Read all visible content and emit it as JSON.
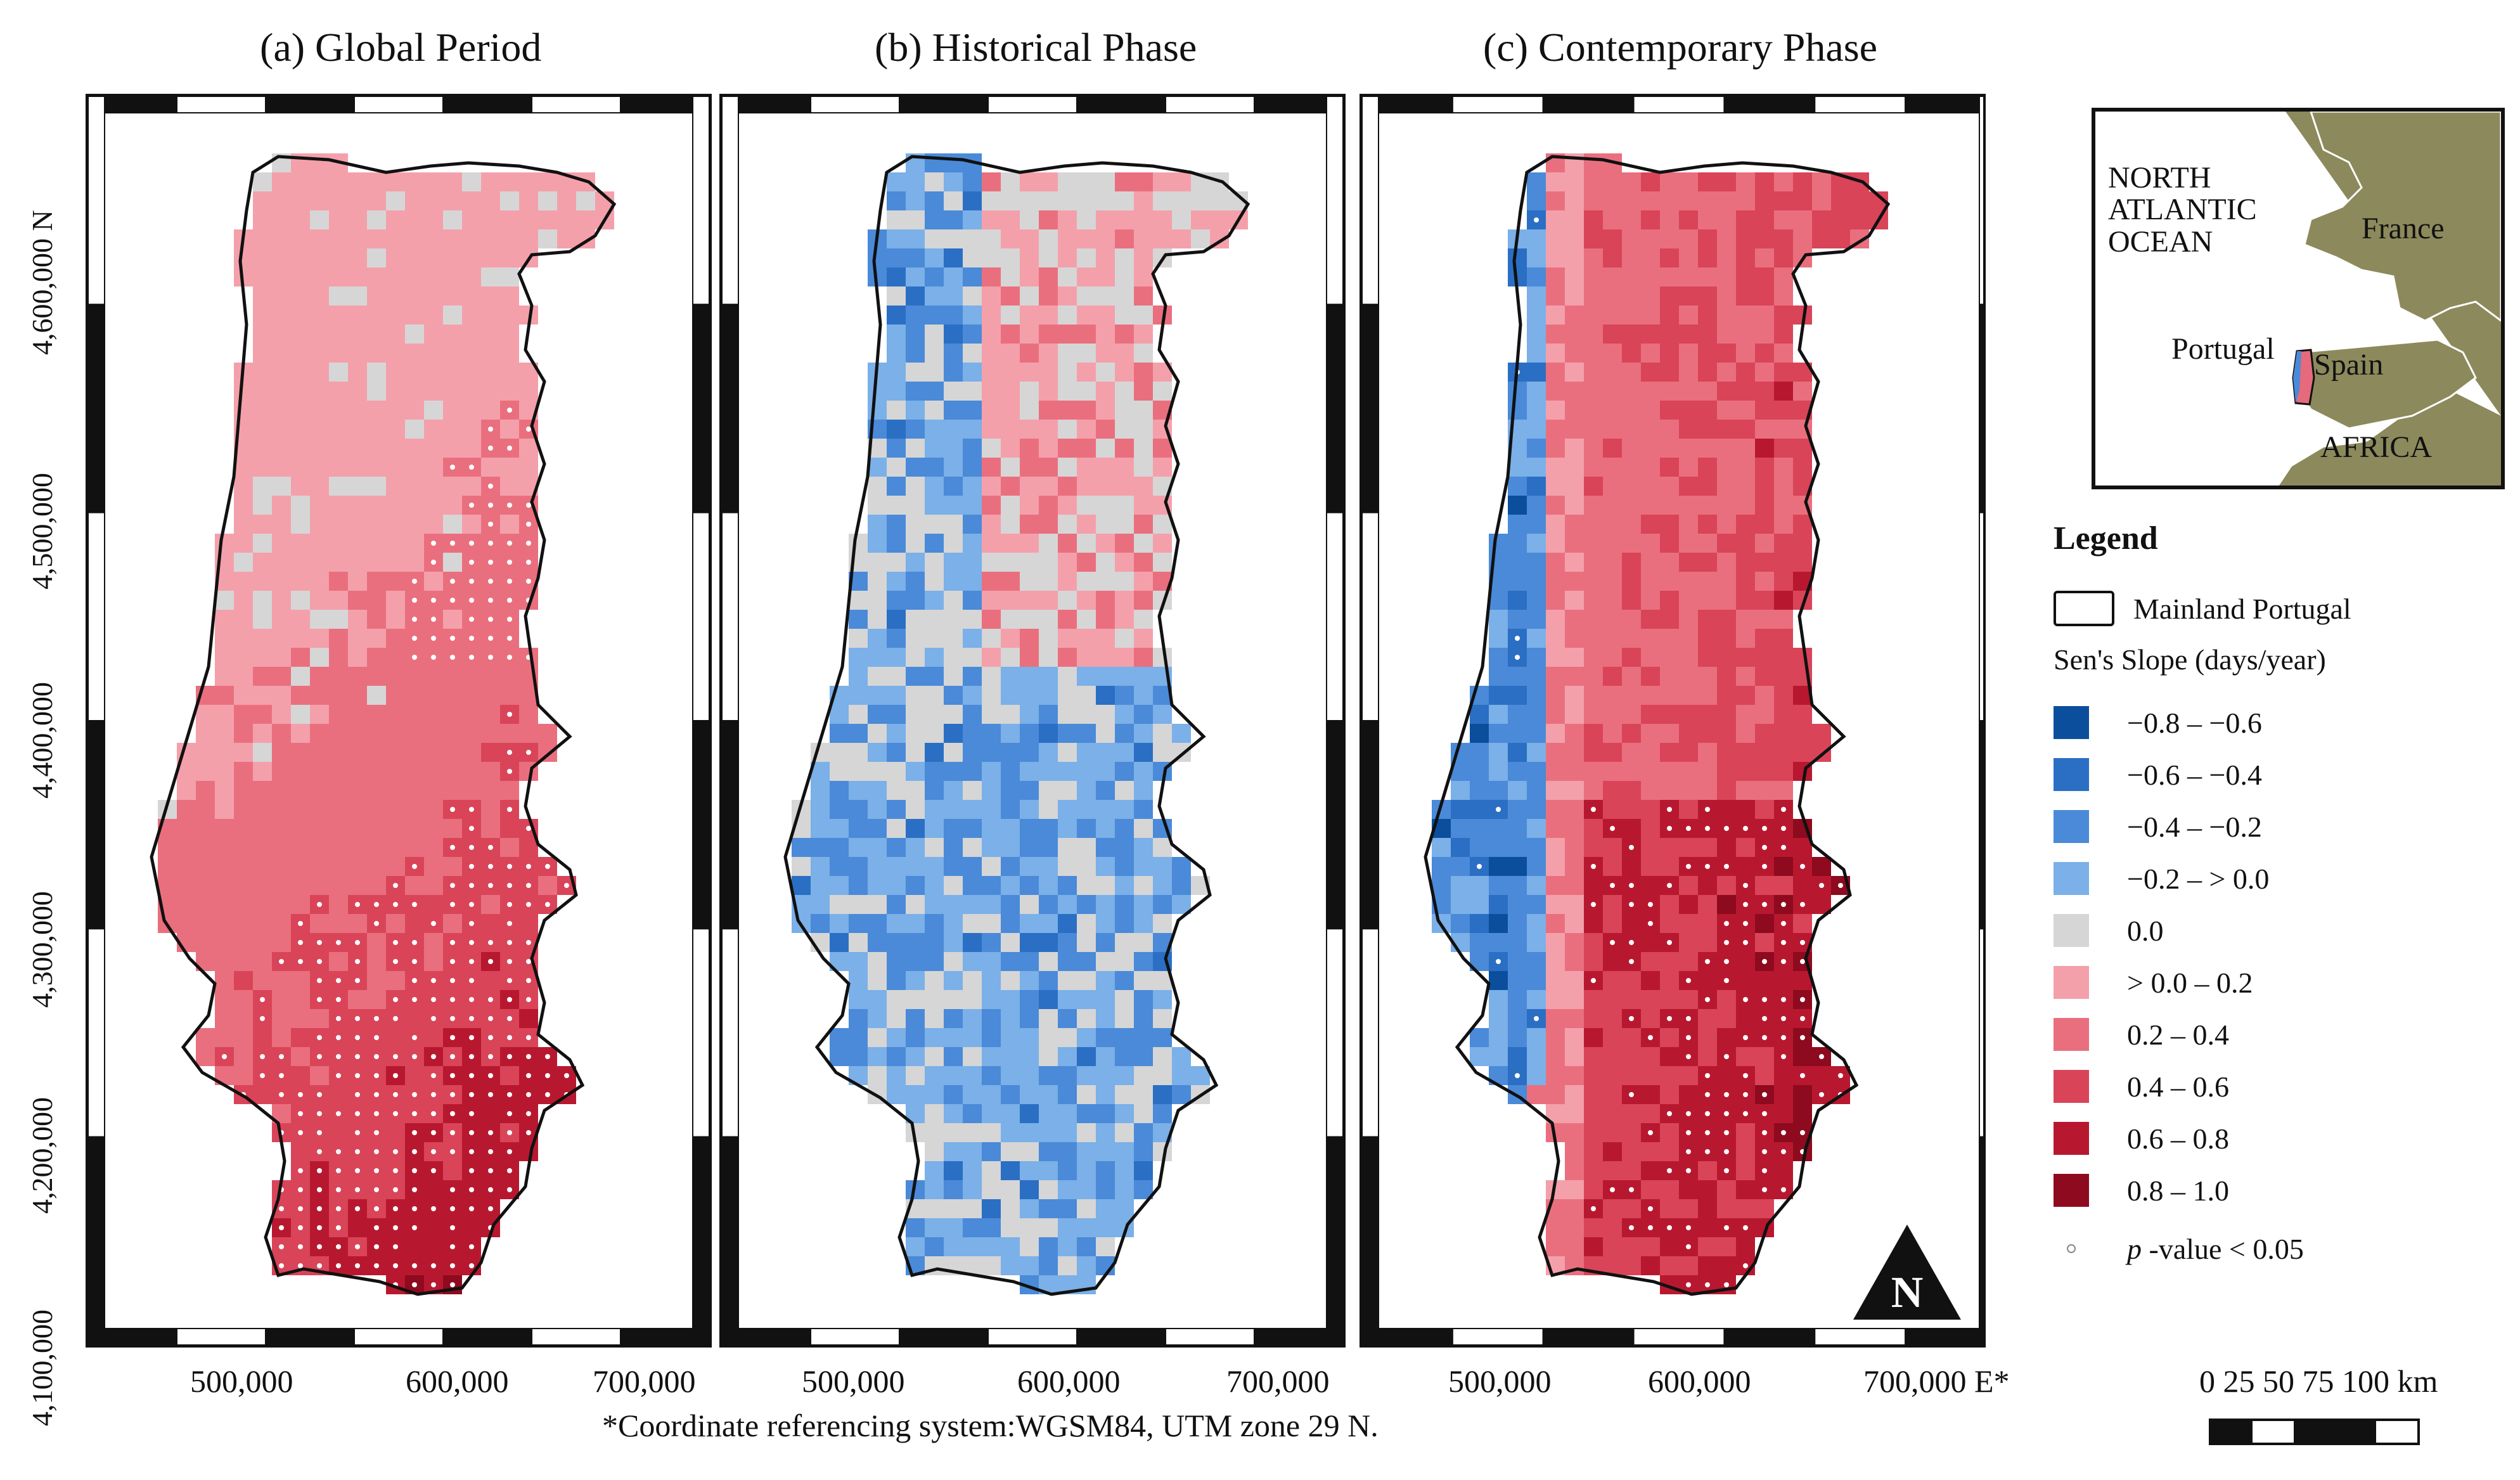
{
  "panels": [
    {
      "title": "(a) Global Period"
    },
    {
      "title": "(b) Historical Phase"
    },
    {
      "title": "(c) Contemporary Phase"
    }
  ],
  "y_axis": {
    "ticks": [
      "4,100,000",
      "4,200,000",
      "4,300,000",
      "4,400,000",
      "4,500,000",
      "4,600,000 N"
    ]
  },
  "x_axis": {
    "panel_a": [
      "500,000",
      "600,000",
      "700,000"
    ],
    "panel_b": [
      "500,000",
      "600,000",
      "700,000"
    ],
    "panel_c": [
      "500,000",
      "600,000",
      "700,000 E*"
    ]
  },
  "crs_note": "*Coordinate referencing system:WGSM84, UTM zone 29 N.",
  "north_arrow": {
    "label": "N",
    "icon": "north-arrow-icon"
  },
  "inset": {
    "ocean_label": "NORTH ATLANTIC OCEAN",
    "ocean_lines": [
      "NORTH",
      "ATLANTIC",
      "OCEAN"
    ],
    "france": "France",
    "portugal": "Portugal",
    "spain": "Spain",
    "africa": "AFRICA",
    "land_color": "#8c8a5c",
    "sea_color": "#ffffff"
  },
  "legend": {
    "title": "Legend",
    "boundary_label": "Mainland Portugal",
    "slope_title": "Sen's Slope (days/year)",
    "classes": [
      {
        "label": "−0.8 – −0.6",
        "color": "#0b4f9c"
      },
      {
        "label": "−0.6 – −0.4",
        "color": "#2a6fc4"
      },
      {
        "label": "−0.4 – −0.2",
        "color": "#4a8ad8"
      },
      {
        "label": "−0.2 – > 0.0",
        "color": "#7bb0e8"
      },
      {
        "label": "0.0",
        "color": "#d6d6d6"
      },
      {
        "label": "> 0.0 – 0.2",
        "color": "#f4a0ab"
      },
      {
        "label": "0.2 – 0.4",
        "color": "#ea6f7e"
      },
      {
        "label": "0.4 – 0.6",
        "color": "#d94458"
      },
      {
        "label": "0.6 – 0.8",
        "color": "#b8182f"
      },
      {
        "label": "0.8 – 1.0",
        "color": "#8e0a1e"
      }
    ],
    "pvalue_italic": "p",
    "pvalue_text": " -value < 0.05"
  },
  "scale_bar": {
    "labels": "0  25  50  75 100 km",
    "units": "km"
  }
}
